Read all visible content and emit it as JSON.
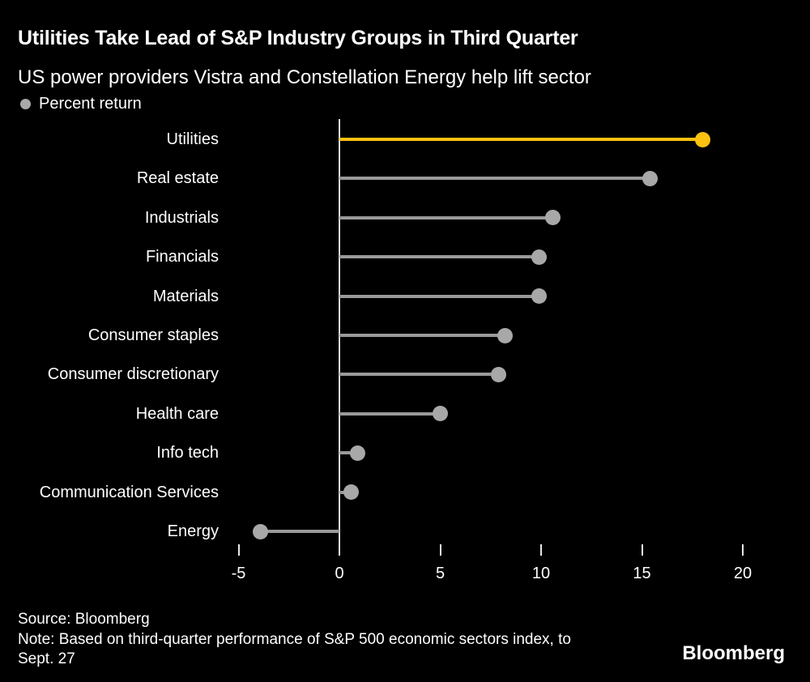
{
  "header": {
    "title": "Utilities Take Lead of S&P Industry Groups in Third Quarter",
    "subtitle": "US power providers Vistra and Constellation Energy help lift sector"
  },
  "legend": {
    "label": "Percent return"
  },
  "colors": {
    "background": "#000000",
    "accent_yellow": "#FDC112",
    "line_gray": "#9A9A9A",
    "dot_gray": "#A8A8A8",
    "axis_line": "#DCDCDC",
    "text": "#FFFFFF"
  },
  "chart_data": {
    "type": "bar",
    "subtype": "horizontal-lollipop",
    "title": "Utilities Take Lead of S&P Industry Groups in Third Quarter",
    "subtitle": "US power providers Vistra and Constellation Energy help lift sector",
    "series_label": "Percent return",
    "xlabel": "Percent return",
    "ylabel": "",
    "xlim": [
      -7,
      22
    ],
    "xticks": [
      -5,
      0,
      5,
      10,
      15,
      20
    ],
    "grid": false,
    "legend_position": "top-left",
    "highlight_category": "Utilities",
    "categories": [
      "Utilities",
      "Real estate",
      "Industrials",
      "Financials",
      "Materials",
      "Consumer staples",
      "Consumer discretionary",
      "Health care",
      "Info tech",
      "Communication Services",
      "Energy"
    ],
    "values": [
      18.0,
      15.4,
      10.6,
      9.9,
      9.9,
      8.2,
      7.9,
      5.0,
      0.9,
      0.6,
      -3.9
    ],
    "points": [
      {
        "label": "Utilities",
        "value": 18.0,
        "color": "#FDC112"
      },
      {
        "label": "Real estate",
        "value": 15.4
      },
      {
        "label": "Industrials",
        "value": 10.6
      },
      {
        "label": "Financials",
        "value": 9.9
      },
      {
        "label": "Materials",
        "value": 9.9
      },
      {
        "label": "Consumer staples",
        "value": 8.2
      },
      {
        "label": "Consumer discretionary",
        "value": 7.9
      },
      {
        "label": "Health care",
        "value": 5.0
      },
      {
        "label": "Info tech",
        "value": 0.9
      },
      {
        "label": "Communication Services",
        "value": 0.6
      },
      {
        "label": "Energy",
        "value": -3.9
      }
    ]
  },
  "footer": {
    "source": "Source: Bloomberg",
    "note_line1": "Note: Based on third-quarter performance of S&P 500 economic sectors index, to",
    "note_line2": "Sept. 27",
    "logo": "Bloomberg"
  }
}
